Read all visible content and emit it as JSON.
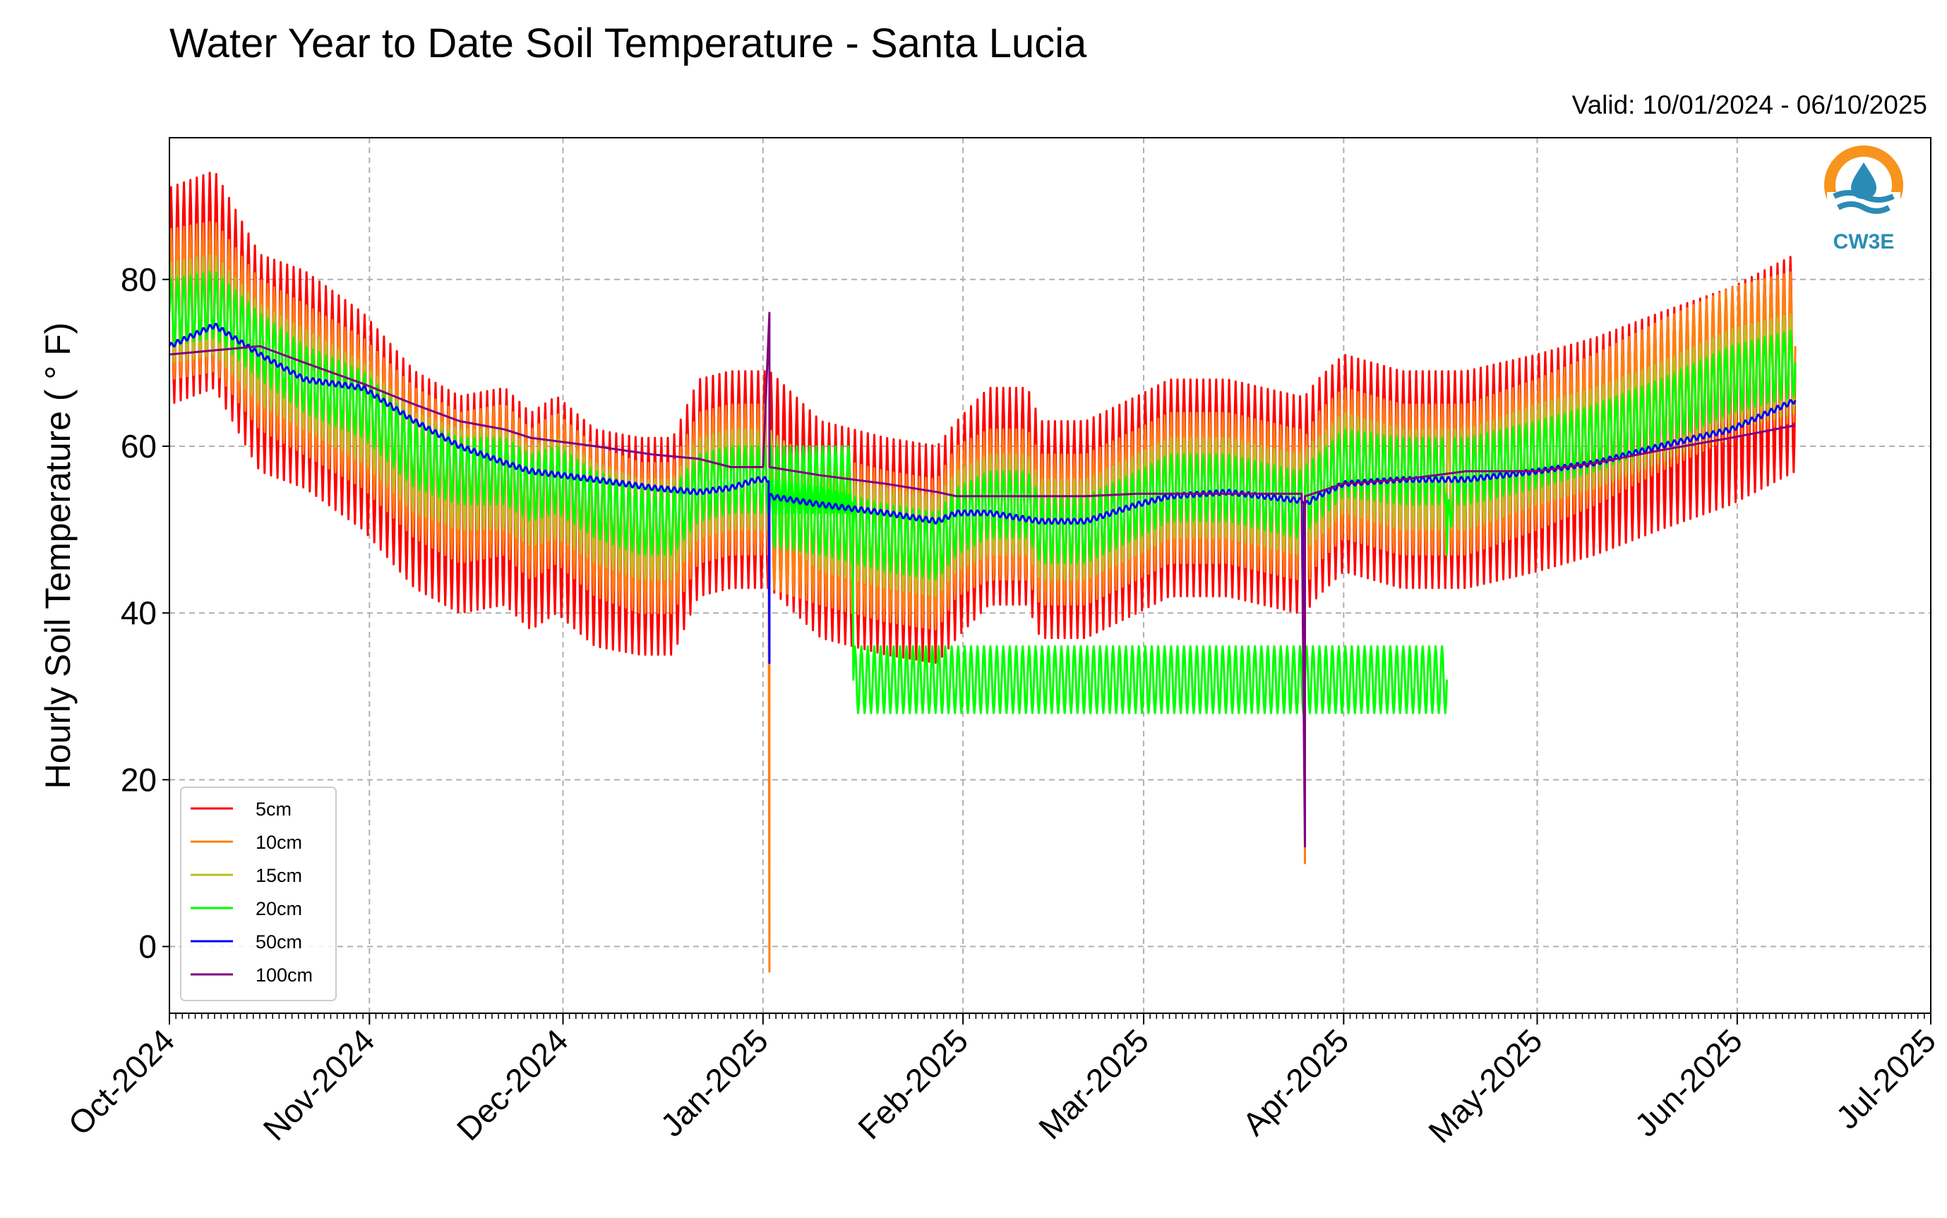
{
  "title": "Water Year to Date Soil Temperature - Santa Lucia",
  "subtitle": "Valid: 10/01/2024 - 06/10/2025",
  "logo_text": "CW3E",
  "colors": {
    "5cm": "#ff0000",
    "10cm": "#ff7f0e",
    "15cm": "#bcbd22",
    "20cm": "#00ff00",
    "50cm": "#0000ff",
    "100cm": "#800080",
    "grid": "#b0b0b0",
    "logo": "#f7941d"
  },
  "chart_data": {
    "type": "line",
    "title": "Water Year to Date Soil Temperature - Santa Lucia",
    "ylabel": "Hourly Soil Temperature ( ° F)",
    "xlabel": "",
    "ylim": [
      -8,
      97
    ],
    "xlim": [
      "2024-10-01",
      "2025-07-01"
    ],
    "yticks": [
      0,
      20,
      40,
      60,
      80
    ],
    "xticks": [
      "Oct-2024",
      "Nov-2024",
      "Dec-2024",
      "Jan-2025",
      "Feb-2025",
      "Mar-2025",
      "Apr-2025",
      "May-2025",
      "Jun-2025",
      "Jul-2025"
    ],
    "grid": true,
    "legend_position": "lower-left",
    "series": [
      {
        "name": "5cm",
        "color_key": "5cm",
        "amplitude": 13,
        "x": [
          "2024-10-01",
          "2024-10-08",
          "2024-10-15",
          "2024-10-22",
          "2024-10-31",
          "2024-11-08",
          "2024-11-15",
          "2024-11-22",
          "2024-11-26",
          "2024-11-30",
          "2024-12-06",
          "2024-12-13",
          "2024-12-18",
          "2024-12-22",
          "2024-12-27",
          "2024-12-31",
          "2025-01-02",
          "2025-01-10",
          "2025-01-20",
          "2025-01-28",
          "2025-01-31",
          "2025-02-05",
          "2025-02-11",
          "2025-02-13",
          "2025-02-20",
          "2025-02-28",
          "2025-03-05",
          "2025-03-10",
          "2025-03-14",
          "2025-03-25",
          "2025-03-26",
          "2025-03-28",
          "2025-04-01",
          "2025-04-10",
          "2025-04-20",
          "2025-05-01",
          "2025-05-10",
          "2025-05-20",
          "2025-05-31",
          "2025-06-10"
        ],
        "values": [
          78,
          80,
          70,
          68,
          63,
          56,
          53,
          54,
          51,
          53,
          49,
          48,
          48,
          55,
          56,
          56,
          56,
          50,
          48,
          47,
          50,
          54,
          54,
          50,
          50,
          53,
          55,
          55,
          55,
          53,
          53,
          55,
          58,
          56,
          56,
          58,
          60,
          63,
          66,
          70
        ]
      },
      {
        "name": "10cm",
        "color_key": "10cm",
        "amplitude": 9,
        "x": [
          "2024-10-01",
          "2024-10-08",
          "2024-10-15",
          "2024-10-22",
          "2024-10-31",
          "2024-11-08",
          "2024-11-15",
          "2024-11-22",
          "2024-11-26",
          "2024-11-30",
          "2024-12-06",
          "2024-12-13",
          "2024-12-18",
          "2024-12-22",
          "2024-12-27",
          "2024-12-31",
          "2025-01-02",
          "2025-01-02",
          "2025-01-02",
          "2025-01-10",
          "2025-01-20",
          "2025-01-28",
          "2025-01-31",
          "2025-02-05",
          "2025-02-11",
          "2025-02-13",
          "2025-02-20",
          "2025-02-28",
          "2025-03-05",
          "2025-03-10",
          "2025-03-14",
          "2025-03-25",
          "2025-03-26",
          "2025-03-26",
          "2025-03-26",
          "2025-03-28",
          "2025-04-01",
          "2025-04-10",
          "2025-04-20",
          "2025-05-01",
          "2025-05-10",
          "2025-05-20",
          "2025-05-31",
          "2025-06-10"
        ],
        "values": [
          77,
          78,
          71,
          68,
          64,
          58,
          55,
          56,
          53,
          55,
          51,
          49,
          49,
          55,
          56,
          56,
          56,
          -3,
          52,
          50,
          48,
          47,
          51,
          53,
          53,
          50,
          50,
          53,
          55,
          55,
          55,
          53,
          53,
          10,
          52,
          55,
          58,
          56,
          56,
          59,
          62,
          66,
          70,
          72
        ]
      },
      {
        "name": "15cm",
        "color_key": "15cm",
        "amplitude": 6,
        "x": [
          "2024-10-01",
          "2024-10-08",
          "2024-10-15",
          "2024-10-22",
          "2024-10-31",
          "2024-11-08",
          "2024-11-15",
          "2024-11-22",
          "2024-11-26",
          "2024-11-30",
          "2024-12-06",
          "2024-12-13",
          "2024-12-18",
          "2024-12-22",
          "2024-12-27",
          "2024-12-31",
          "2025-01-02",
          "2025-01-10",
          "2025-01-20",
          "2025-01-28",
          "2025-01-31",
          "2025-02-05",
          "2025-02-11",
          "2025-02-13",
          "2025-02-20",
          "2025-02-28",
          "2025-03-05",
          "2025-03-10",
          "2025-03-14",
          "2025-03-25",
          "2025-03-28",
          "2025-04-01",
          "2025-04-10",
          "2025-04-20",
          "2025-05-01",
          "2025-05-10",
          "2025-05-20",
          "2025-05-31",
          "2025-06-10"
        ],
        "values": [
          76,
          77,
          71,
          68,
          64,
          58,
          56,
          56,
          54,
          55,
          52,
          50,
          50,
          55,
          56,
          56,
          56,
          51,
          49,
          48,
          51,
          53,
          53,
          50,
          50,
          53,
          55,
          55,
          55,
          53,
          55,
          58,
          56,
          56,
          59,
          61,
          64,
          68,
          70
        ]
      },
      {
        "name": "20cm",
        "color_key": "20cm",
        "amplitude": 4,
        "x": [
          "2024-10-01",
          "2024-10-08",
          "2024-10-15",
          "2024-10-22",
          "2024-10-31",
          "2024-11-08",
          "2024-11-15",
          "2024-11-22",
          "2024-11-26",
          "2024-11-30",
          "2024-12-06",
          "2024-12-13",
          "2024-12-18",
          "2024-12-22",
          "2024-12-27",
          "2024-12-31",
          "2025-01-02",
          "2025-01-15",
          "2025-01-15",
          "2025-04-17"
        ],
        "values": [
          76,
          77,
          72,
          68,
          65,
          59,
          57,
          57,
          55,
          56,
          53,
          51,
          51,
          55,
          56,
          56,
          56,
          56,
          32,
          32
        ]
      },
      {
        "name": "20cm",
        "color_key": "20cm",
        "amplitude": 4,
        "x": [
          "2025-01-02",
          "2025-01-10",
          "2025-01-20",
          "2025-01-28",
          "2025-01-31",
          "2025-02-05",
          "2025-02-11",
          "2025-02-13",
          "2025-02-20",
          "2025-02-28",
          "2025-03-05",
          "2025-03-10",
          "2025-03-14",
          "2025-03-25",
          "2025-03-28",
          "2025-04-01",
          "2025-04-10",
          "2025-04-17",
          "2025-04-17",
          "2025-04-18",
          "2025-04-20",
          "2025-05-01",
          "2025-05-10",
          "2025-05-20",
          "2025-05-31",
          "2025-06-10"
        ],
        "values": [
          52,
          51,
          49,
          48,
          51,
          53,
          53,
          50,
          50,
          53,
          55,
          55,
          55,
          53,
          55,
          58,
          57,
          57,
          47,
          57,
          57,
          59,
          61,
          64,
          68,
          70
        ]
      },
      {
        "name": "50cm",
        "color_key": "50cm",
        "amplitude": 0.3,
        "x": [
          "2024-10-01",
          "2024-10-08",
          "2024-10-15",
          "2024-10-22",
          "2024-10-31",
          "2024-11-08",
          "2024-11-15",
          "2024-11-22",
          "2024-11-26",
          "2024-12-06",
          "2024-12-15",
          "2024-12-22",
          "2024-12-27",
          "2024-12-31",
          "2025-01-02",
          "2025-01-02",
          "2025-01-02",
          "2025-01-10",
          "2025-01-20",
          "2025-01-28",
          "2025-01-31",
          "2025-02-05",
          "2025-02-13",
          "2025-02-20",
          "2025-02-28",
          "2025-03-05",
          "2025-03-14",
          "2025-03-25",
          "2025-03-26",
          "2025-03-26",
          "2025-03-26",
          "2025-03-28",
          "2025-04-01",
          "2025-04-10",
          "2025-04-20",
          "2025-05-01",
          "2025-05-10",
          "2025-05-20",
          "2025-05-31",
          "2025-06-10"
        ],
        "values": [
          72,
          74.5,
          71,
          68,
          67,
          63,
          60,
          58,
          57,
          56,
          55,
          54.5,
          55,
          56,
          56,
          34,
          54,
          53,
          52,
          51,
          52,
          52,
          51,
          51,
          53,
          54,
          54.5,
          53.5,
          53.5,
          27,
          53,
          54,
          55.5,
          56,
          56,
          57,
          58,
          60,
          62,
          65.5
        ]
      },
      {
        "name": "100cm",
        "color_key": "100cm",
        "amplitude": 0,
        "x": [
          "2024-10-01",
          "2024-10-08",
          "2024-10-15",
          "2024-10-22",
          "2024-10-31",
          "2024-11-08",
          "2024-11-15",
          "2024-11-22",
          "2024-11-26",
          "2024-12-06",
          "2024-12-15",
          "2024-12-22",
          "2024-12-27",
          "2024-12-31",
          "2025-01-02",
          "2025-01-02",
          "2025-01-02",
          "2025-01-10",
          "2025-01-20",
          "2025-01-28",
          "2025-01-31",
          "2025-02-05",
          "2025-02-13",
          "2025-02-20",
          "2025-02-28",
          "2025-03-05",
          "2025-03-14",
          "2025-03-25",
          "2025-03-26",
          "2025-03-26",
          "2025-03-26",
          "2025-03-28",
          "2025-04-01",
          "2025-04-10",
          "2025-04-20",
          "2025-05-01",
          "2025-05-10",
          "2025-05-20",
          "2025-05-31",
          "2025-06-10"
        ],
        "values": [
          71,
          71.5,
          72,
          70,
          67.5,
          65,
          63,
          62,
          61,
          60,
          59,
          58.5,
          57.5,
          57.5,
          57.5,
          76,
          57.5,
          56.5,
          55.5,
          54.5,
          54,
          54,
          54,
          54,
          54.3,
          54.3,
          54.3,
          54.3,
          54.3,
          12,
          54,
          54.5,
          55.5,
          56,
          57,
          57,
          58,
          59.5,
          61,
          62.5
        ]
      }
    ]
  }
}
